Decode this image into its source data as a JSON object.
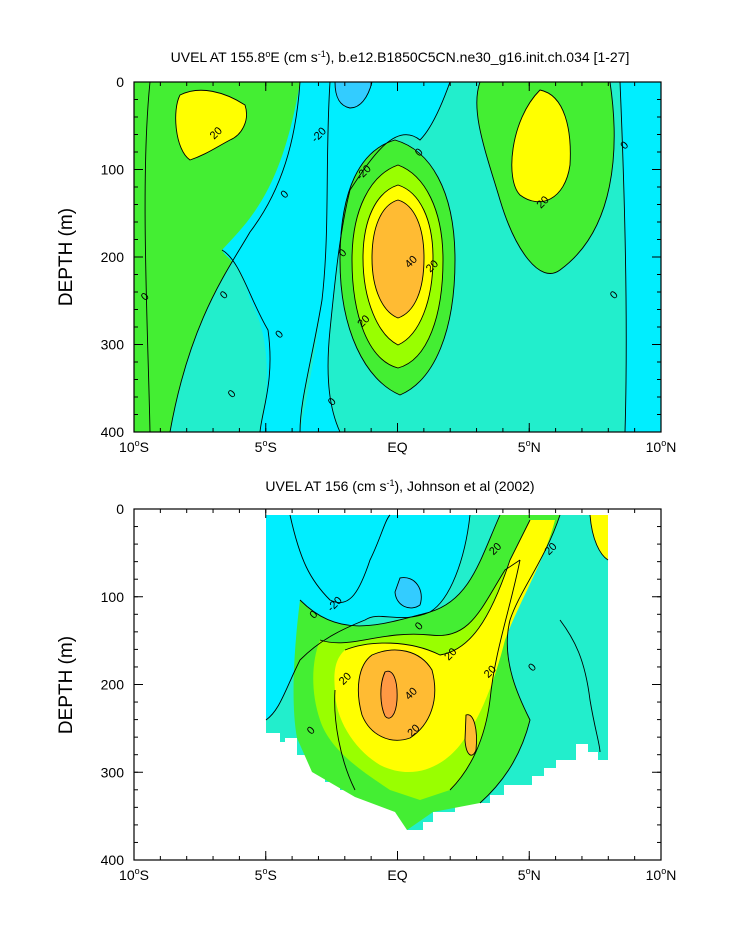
{
  "colors": {
    "cyan_dark": "#33ccff",
    "cyan": "#00eeff",
    "teal": "#22eecc",
    "green": "#44ee33",
    "lightgreen": "#99ff00",
    "yellow": "#ffff00",
    "orange": "#ffbb33",
    "orange_dark": "#ff9944"
  },
  "chart_data": [
    {
      "type": "heatmap",
      "title_pre": "UVEL AT 155.8",
      "title_deg": "o",
      "title_mid": "E (cm s",
      "title_exp": "-1",
      "title_post": "), b.e12.B1850C5CN.ne30_g16.init.ch.034 [1-27]",
      "ylabel": "DEPTH (m)",
      "xlabel": "",
      "x_ticks": [
        {
          "value": -10,
          "num": "10",
          "deg": "o",
          "hem": "S"
        },
        {
          "value": -5,
          "num": "5",
          "deg": "o",
          "hem": "S"
        },
        {
          "value": 0,
          "num": "EQ",
          "deg": "",
          "hem": ""
        },
        {
          "value": 5,
          "num": "5",
          "deg": "o",
          "hem": "N"
        },
        {
          "value": 10,
          "num": "10",
          "deg": "o",
          "hem": "N"
        }
      ],
      "y_ticks": [
        "0",
        "100",
        "200",
        "300",
        "400"
      ],
      "xlim": [
        -10,
        10
      ],
      "ylim": [
        0,
        400
      ],
      "y_inverted": true,
      "contour_interval": 10,
      "contour_labels": [
        {
          "text": "20",
          "lat": -6.9,
          "depth": 58
        },
        {
          "text": "-20",
          "lat": -3.0,
          "depth": 60
        },
        {
          "text": "-20",
          "lat": -1.3,
          "depth": 103
        },
        {
          "text": "0",
          "lat": 0.8,
          "depth": 80
        },
        {
          "text": "0",
          "lat": -4.3,
          "depth": 128
        },
        {
          "text": "0",
          "lat": -9.6,
          "depth": 245
        },
        {
          "text": "0",
          "lat": -6.6,
          "depth": 243
        },
        {
          "text": "0",
          "lat": -2.1,
          "depth": 195
        },
        {
          "text": "40",
          "lat": 0.5,
          "depth": 205
        },
        {
          "text": "20",
          "lat": 1.3,
          "depth": 210
        },
        {
          "text": "20",
          "lat": -1.3,
          "depth": 273
        },
        {
          "text": "0",
          "lat": -4.5,
          "depth": 288
        },
        {
          "text": "0",
          "lat": -6.3,
          "depth": 356
        },
        {
          "text": "0",
          "lat": -2.5,
          "depth": 365
        },
        {
          "text": "20",
          "lat": 5.5,
          "depth": 137
        },
        {
          "text": "0",
          "lat": 8.6,
          "depth": 72
        },
        {
          "text": "0",
          "lat": 8.2,
          "depth": 243
        }
      ]
    },
    {
      "type": "heatmap",
      "title_pre": "UVEL AT 156 (cm s",
      "title_deg": "",
      "title_mid": "",
      "title_exp": "-1",
      "title_post": "), Johnson et al (2002)",
      "ylabel": "DEPTH (m)",
      "xlabel": "",
      "x_ticks": [
        {
          "value": -10,
          "num": "10",
          "deg": "o",
          "hem": "S"
        },
        {
          "value": -5,
          "num": "5",
          "deg": "o",
          "hem": "S"
        },
        {
          "value": 0,
          "num": "EQ",
          "deg": "",
          "hem": ""
        },
        {
          "value": 5,
          "num": "5",
          "deg": "o",
          "hem": "N"
        },
        {
          "value": 10,
          "num": "10",
          "deg": "o",
          "hem": "N"
        }
      ],
      "y_ticks": [
        "0",
        "100",
        "200",
        "300",
        "400"
      ],
      "xlim": [
        -10,
        10
      ],
      "ylim": [
        0,
        400
      ],
      "y_inverted": true,
      "data_lat_range": [
        -5,
        8
      ],
      "contour_interval": 10,
      "contour_labels": [
        {
          "text": "20",
          "lat": 3.7,
          "depth": 45
        },
        {
          "text": "20",
          "lat": 5.8,
          "depth": 45
        },
        {
          "text": "0",
          "lat": -3.2,
          "depth": 120
        },
        {
          "text": "-20",
          "lat": -2.4,
          "depth": 108
        },
        {
          "text": "0",
          "lat": 0.8,
          "depth": 133
        },
        {
          "text": "20",
          "lat": 2.0,
          "depth": 165
        },
        {
          "text": "20",
          "lat": -2.0,
          "depth": 193
        },
        {
          "text": "40",
          "lat": 0.5,
          "depth": 210
        },
        {
          "text": "20",
          "lat": 3.5,
          "depth": 185
        },
        {
          "text": "0",
          "lat": 5.1,
          "depth": 180
        },
        {
          "text": "0",
          "lat": -3.3,
          "depth": 252
        },
        {
          "text": "20",
          "lat": 0.6,
          "depth": 252
        }
      ]
    }
  ]
}
